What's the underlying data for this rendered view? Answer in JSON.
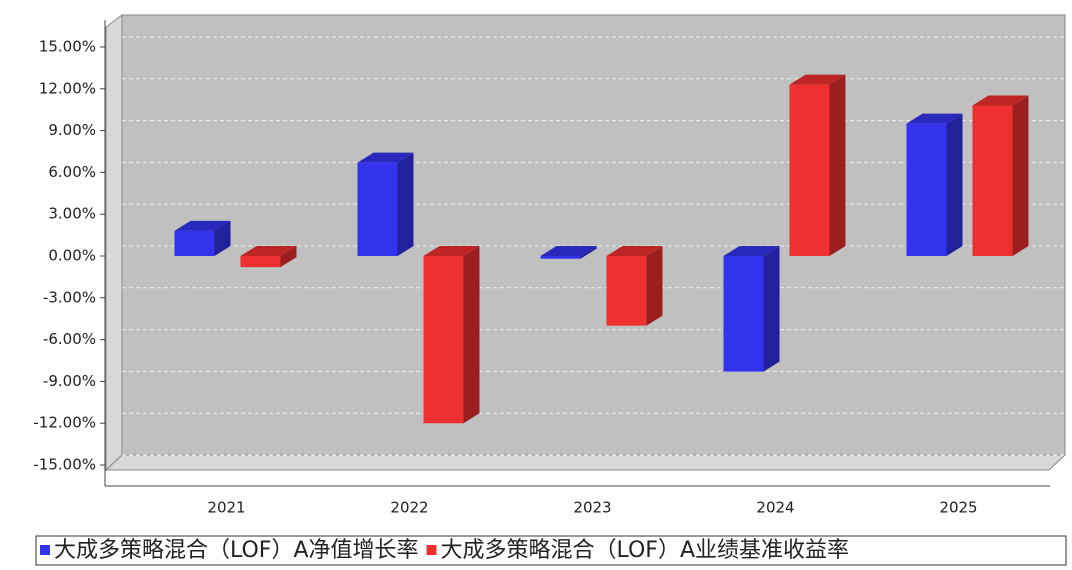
{
  "chart_data": {
    "type": "bar3d",
    "categories": [
      "2021",
      "2022",
      "2023",
      "2024",
      "2025"
    ],
    "series": [
      {
        "name": "大成多策略混合（LOF）A净值增长率",
        "color": "#3333ee",
        "values": [
          1.8,
          6.7,
          -0.2,
          -8.3,
          9.5
        ]
      },
      {
        "name": "大成多策略混合（LOF）A业绩基准收益率",
        "color": "#ee3030",
        "values": [
          -0.8,
          -12.0,
          -5.0,
          12.3,
          10.8
        ]
      }
    ],
    "ylim": [
      -15,
      15
    ],
    "yticks": [
      {
        "value": -15,
        "label": "-15.00%"
      },
      {
        "value": -12,
        "label": "-12.00%"
      },
      {
        "value": -9,
        "label": "-9.00%"
      },
      {
        "value": -6,
        "label": "-6.00%"
      },
      {
        "value": -3,
        "label": "-3.00%"
      },
      {
        "value": 0,
        "label": "0.00%"
      },
      {
        "value": 3,
        "label": "3.00%"
      },
      {
        "value": 6,
        "label": "6.00%"
      },
      {
        "value": 9,
        "label": "9.00%"
      },
      {
        "value": 12,
        "label": "12.00%"
      },
      {
        "value": 15,
        "label": "15.00%"
      }
    ],
    "grid": true
  }
}
